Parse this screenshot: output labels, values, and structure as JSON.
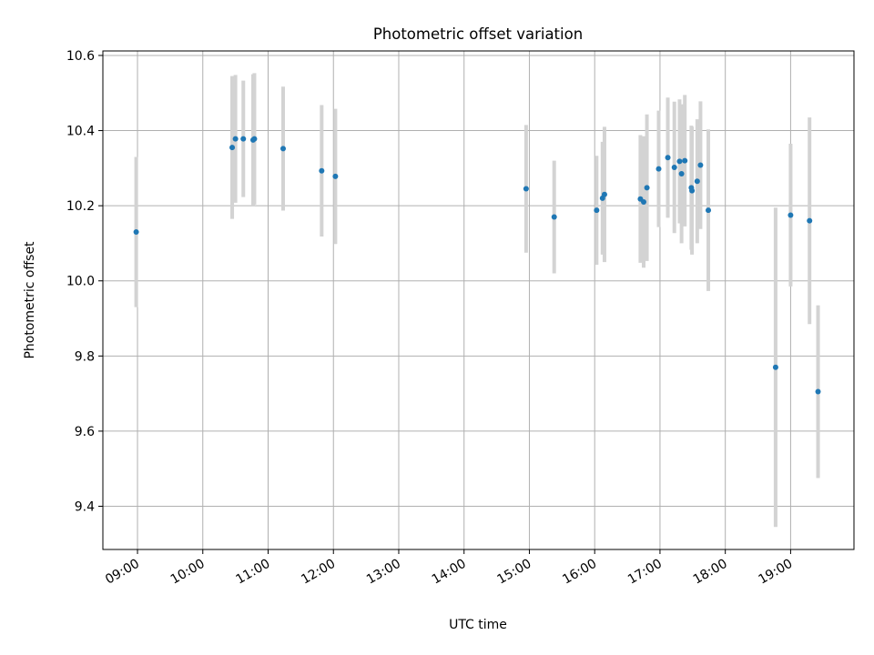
{
  "chart_data": {
    "type": "scatter",
    "title": "Photometric offset variation",
    "xlabel": "UTC time",
    "ylabel": "Photometric offset",
    "grid": true,
    "xlim": [
      8.47,
      19.97
    ],
    "ylim": [
      9.285,
      10.612
    ],
    "x_ticks": [
      9,
      10,
      11,
      12,
      13,
      14,
      15,
      16,
      17,
      18,
      19
    ],
    "x_tick_labels": [
      "09:00",
      "10:00",
      "11:00",
      "12:00",
      "13:00",
      "14:00",
      "15:00",
      "16:00",
      "17:00",
      "18:00",
      "19:00"
    ],
    "y_ticks": [
      9.4,
      9.6,
      9.8,
      10.0,
      10.2,
      10.4,
      10.6
    ],
    "y_tick_labels": [
      "9.4",
      "9.6",
      "9.8",
      "10.0",
      "10.2",
      "10.4",
      "10.6"
    ],
    "error_color": "#d3d3d3",
    "point_color": "#1f77b4",
    "points": [
      {
        "x": 8.98,
        "y": 10.13,
        "yerr": 0.2
      },
      {
        "x": 10.45,
        "y": 10.355,
        "yerr": 0.19
      },
      {
        "x": 10.5,
        "y": 10.378,
        "yerr": 0.17
      },
      {
        "x": 10.62,
        "y": 10.378,
        "yerr": 0.155
      },
      {
        "x": 10.77,
        "y": 10.375,
        "yerr": 0.175
      },
      {
        "x": 10.79,
        "y": 10.378,
        "yerr": 0.175
      },
      {
        "x": 11.23,
        "y": 10.352,
        "yerr": 0.165
      },
      {
        "x": 11.82,
        "y": 10.293,
        "yerr": 0.175
      },
      {
        "x": 12.03,
        "y": 10.278,
        "yerr": 0.18
      },
      {
        "x": 14.95,
        "y": 10.245,
        "yerr": 0.17
      },
      {
        "x": 15.38,
        "y": 10.17,
        "yerr": 0.15
      },
      {
        "x": 16.03,
        "y": 10.188,
        "yerr": 0.145
      },
      {
        "x": 16.12,
        "y": 10.22,
        "yerr": 0.15
      },
      {
        "x": 16.15,
        "y": 10.23,
        "yerr": 0.18
      },
      {
        "x": 16.7,
        "y": 10.218,
        "yerr": 0.17
      },
      {
        "x": 16.75,
        "y": 10.21,
        "yerr": 0.175
      },
      {
        "x": 16.8,
        "y": 10.248,
        "yerr": 0.195
      },
      {
        "x": 16.98,
        "y": 10.298,
        "yerr": 0.155
      },
      {
        "x": 17.12,
        "y": 10.328,
        "yerr": 0.16
      },
      {
        "x": 17.22,
        "y": 10.302,
        "yerr": 0.175
      },
      {
        "x": 17.3,
        "y": 10.318,
        "yerr": 0.165
      },
      {
        "x": 17.33,
        "y": 10.285,
        "yerr": 0.185
      },
      {
        "x": 17.38,
        "y": 10.32,
        "yerr": 0.175
      },
      {
        "x": 17.48,
        "y": 10.248,
        "yerr": 0.165
      },
      {
        "x": 17.49,
        "y": 10.24,
        "yerr": 0.17
      },
      {
        "x": 17.57,
        "y": 10.265,
        "yerr": 0.165
      },
      {
        "x": 17.62,
        "y": 10.308,
        "yerr": 0.17
      },
      {
        "x": 17.74,
        "y": 10.188,
        "yerr": 0.215
      },
      {
        "x": 18.77,
        "y": 9.77,
        "yerr": 0.425
      },
      {
        "x": 19.0,
        "y": 10.175,
        "yerr": 0.19
      },
      {
        "x": 19.29,
        "y": 10.16,
        "yerr": 0.275
      },
      {
        "x": 19.42,
        "y": 9.705,
        "yerr": 0.23
      }
    ]
  }
}
